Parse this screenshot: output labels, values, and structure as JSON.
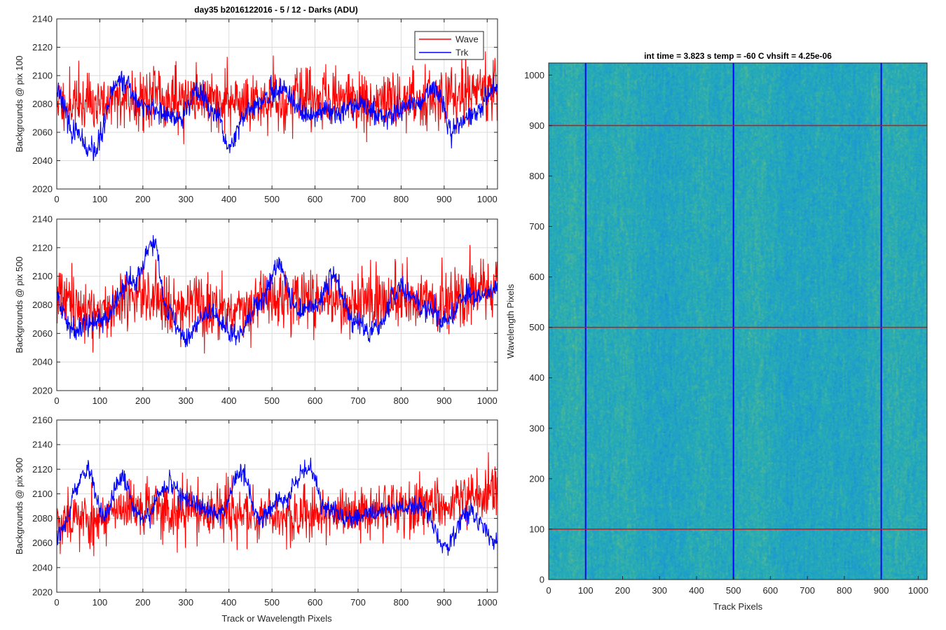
{
  "figure": {
    "title": "day35 b2016122016 - 5 / 12 - Darks (ADU)",
    "xlabel": "Track or Wavelength Pixels"
  },
  "legend": {
    "items": [
      "Wave",
      "Trk"
    ],
    "colors": [
      "#ff0000",
      "#0000ff"
    ],
    "placement": "top-right"
  },
  "chart_data": [
    {
      "type": "line",
      "ylabel": "Backgrounds @ pix 100",
      "xlim": [
        0,
        1024
      ],
      "ylim": [
        2020,
        2140
      ],
      "xticks": [
        0,
        100,
        200,
        300,
        400,
        500,
        600,
        700,
        800,
        900,
        1000
      ],
      "yticks": [
        2020,
        2040,
        2060,
        2080,
        2100,
        2120,
        2140
      ],
      "grid": true,
      "series": [
        {
          "name": "Wave",
          "color": "#ff0000",
          "mean": 2083,
          "noise": 14,
          "wander": 4,
          "seed": 11,
          "anchors": [
            [
              0,
              2082
            ],
            [
              100,
              2080
            ],
            [
              200,
              2086
            ],
            [
              300,
              2084
            ],
            [
              400,
              2083
            ],
            [
              500,
              2082
            ],
            [
              600,
              2085
            ],
            [
              700,
              2083
            ],
            [
              800,
              2082
            ],
            [
              900,
              2085
            ],
            [
              1024,
              2090
            ]
          ]
        },
        {
          "name": "Trk",
          "color": "#0000ff",
          "mean": 2078,
          "noise": 5,
          "wander": 3,
          "seed": 23,
          "anchors": [
            [
              0,
              2090
            ],
            [
              40,
              2060
            ],
            [
              80,
              2045
            ],
            [
              150,
              2098
            ],
            [
              200,
              2078
            ],
            [
              280,
              2070
            ],
            [
              330,
              2088
            ],
            [
              370,
              2072
            ],
            [
              400,
              2050
            ],
            [
              450,
              2078
            ],
            [
              520,
              2088
            ],
            [
              580,
              2072
            ],
            [
              650,
              2075
            ],
            [
              700,
              2080
            ],
            [
              760,
              2070
            ],
            [
              820,
              2078
            ],
            [
              880,
              2090
            ],
            [
              920,
              2062
            ],
            [
              960,
              2072
            ],
            [
              1024,
              2092
            ]
          ]
        }
      ]
    },
    {
      "type": "line",
      "ylabel": "Backgrounds @ pix 500",
      "xlim": [
        0,
        1024
      ],
      "ylim": [
        2020,
        2140
      ],
      "xticks": [
        0,
        100,
        200,
        300,
        400,
        500,
        600,
        700,
        800,
        900,
        1000
      ],
      "yticks": [
        2020,
        2040,
        2060,
        2080,
        2100,
        2120,
        2140
      ],
      "grid": true,
      "series": [
        {
          "name": "Wave",
          "color": "#ff0000",
          "mean": 2082,
          "noise": 14,
          "wander": 4,
          "seed": 37,
          "anchors": [
            [
              0,
              2085
            ],
            [
              100,
              2075
            ],
            [
              200,
              2088
            ],
            [
              300,
              2080
            ],
            [
              400,
              2078
            ],
            [
              500,
              2085
            ],
            [
              600,
              2082
            ],
            [
              700,
              2080
            ],
            [
              800,
              2085
            ],
            [
              900,
              2080
            ],
            [
              1024,
              2090
            ]
          ]
        },
        {
          "name": "Trk",
          "color": "#0000ff",
          "mean": 2078,
          "noise": 5,
          "wander": 3,
          "seed": 41,
          "anchors": [
            [
              0,
              2085
            ],
            [
              30,
              2065
            ],
            [
              100,
              2068
            ],
            [
              180,
              2098
            ],
            [
              225,
              2122
            ],
            [
              260,
              2075
            ],
            [
              300,
              2055
            ],
            [
              350,
              2075
            ],
            [
              420,
              2058
            ],
            [
              470,
              2080
            ],
            [
              515,
              2108
            ],
            [
              560,
              2075
            ],
            [
              600,
              2080
            ],
            [
              640,
              2100
            ],
            [
              690,
              2070
            ],
            [
              730,
              2060
            ],
            [
              800,
              2092
            ],
            [
              850,
              2078
            ],
            [
              900,
              2070
            ],
            [
              960,
              2085
            ],
            [
              1024,
              2092
            ]
          ]
        }
      ]
    },
    {
      "type": "line",
      "ylabel": "Backgrounds @ pix 900",
      "xlim": [
        0,
        1024
      ],
      "ylim": [
        2020,
        2160
      ],
      "xticks": [
        0,
        100,
        200,
        300,
        400,
        500,
        600,
        700,
        800,
        900,
        1000
      ],
      "yticks": [
        2020,
        2040,
        2060,
        2080,
        2100,
        2120,
        2140,
        2160
      ],
      "grid": true,
      "series": [
        {
          "name": "Wave",
          "color": "#ff0000",
          "mean": 2085,
          "noise": 15,
          "wander": 4,
          "seed": 53,
          "anchors": [
            [
              0,
              2080
            ],
            [
              100,
              2080
            ],
            [
              200,
              2088
            ],
            [
              300,
              2086
            ],
            [
              400,
              2084
            ],
            [
              500,
              2082
            ],
            [
              600,
              2085
            ],
            [
              700,
              2084
            ],
            [
              800,
              2088
            ],
            [
              900,
              2092
            ],
            [
              1024,
              2102
            ]
          ]
        },
        {
          "name": "Trk",
          "color": "#0000ff",
          "mean": 2088,
          "noise": 5,
          "wander": 3,
          "seed": 67,
          "anchors": [
            [
              0,
              2065
            ],
            [
              70,
              2118
            ],
            [
              110,
              2082
            ],
            [
              150,
              2110
            ],
            [
              200,
              2078
            ],
            [
              260,
              2108
            ],
            [
              320,
              2090
            ],
            [
              380,
              2085
            ],
            [
              430,
              2118
            ],
            [
              470,
              2080
            ],
            [
              520,
              2095
            ],
            [
              590,
              2120
            ],
            [
              620,
              2090
            ],
            [
              680,
              2080
            ],
            [
              740,
              2085
            ],
            [
              800,
              2088
            ],
            [
              850,
              2090
            ],
            [
              900,
              2058
            ],
            [
              960,
              2085
            ],
            [
              1024,
              2062
            ]
          ]
        }
      ]
    },
    {
      "type": "heatmap",
      "title": "int time = 3.823 s   temp = -60 C   vhsift = 4.25e-06",
      "xlabel": "Track Pixels",
      "ylabel": "Wavelength Pixels",
      "xlim": [
        0,
        1024
      ],
      "ylim": [
        0,
        1024
      ],
      "xticks": [
        0,
        100,
        200,
        300,
        400,
        500,
        600,
        700,
        800,
        900,
        1000
      ],
      "yticks": [
        0,
        100,
        200,
        300,
        400,
        500,
        600,
        700,
        800,
        900,
        1000
      ],
      "colormap": "parula",
      "vertical_markers": [
        100,
        500,
        900
      ],
      "horizontal_markers": [
        100,
        500,
        900
      ],
      "vertical_marker_color": "#0000ff",
      "horizontal_marker_color": "#ff0000"
    }
  ]
}
